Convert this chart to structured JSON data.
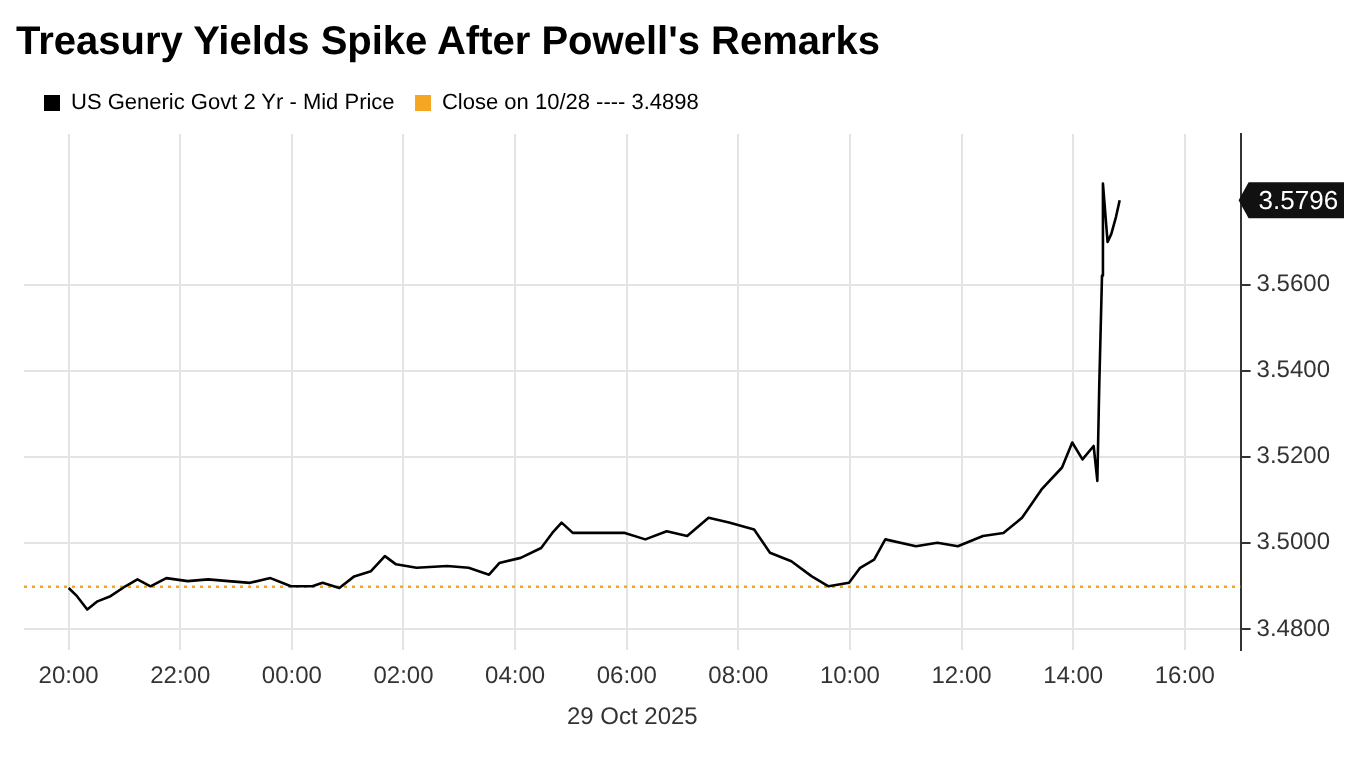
{
  "chart_data": {
    "type": "line",
    "title": "Treasury Yields Spike After Powell's Remarks",
    "xlabel": "29 Oct 2025",
    "x": [
      "2025-10-28T20:00",
      "2025-10-28T20:09",
      "2025-10-28T20:20",
      "2025-10-28T20:31",
      "2025-10-28T20:45",
      "2025-10-28T21:01",
      "2025-10-28T21:14",
      "2025-10-28T21:28",
      "2025-10-28T21:45",
      "2025-10-28T22:08",
      "2025-10-28T22:30",
      "2025-10-28T22:52",
      "2025-10-28T23:15",
      "2025-10-28T23:37",
      "2025-10-28T23:59",
      "2025-10-29T00:22",
      "2025-10-29T00:33",
      "2025-10-29T00:51",
      "2025-10-29T01:07",
      "2025-10-29T01:25",
      "2025-10-29T01:40",
      "2025-10-29T01:52",
      "2025-10-29T02:14",
      "2025-10-29T02:47",
      "2025-10-29T03:10",
      "2025-10-29T03:32",
      "2025-10-29T03:43",
      "2025-10-29T04:06",
      "2025-10-29T04:28",
      "2025-10-29T04:40",
      "2025-10-29T04:50",
      "2025-10-29T05:02",
      "2025-10-29T05:24",
      "2025-10-29T05:58",
      "2025-10-29T06:20",
      "2025-10-29T06:43",
      "2025-10-29T07:05",
      "2025-10-29T07:28",
      "2025-10-29T07:50",
      "2025-10-29T08:17",
      "2025-10-29T08:34",
      "2025-10-29T08:57",
      "2025-10-29T09:19",
      "2025-10-29T09:37",
      "2025-10-29T09:59",
      "2025-10-29T10:11",
      "2025-10-29T10:26",
      "2025-10-29T10:38",
      "2025-10-29T11:11",
      "2025-10-29T11:34",
      "2025-10-29T11:56",
      "2025-10-29T12:23",
      "2025-10-29T12:45",
      "2025-10-29T13:05",
      "2025-10-29T13:26",
      "2025-10-29T13:48",
      "2025-10-29T13:59",
      "2025-10-29T14:10",
      "2025-10-29T14:22",
      "2025-10-29T14:26",
      "2025-10-29T14:28",
      "2025-10-29T14:31",
      "2025-10-29T14:32",
      "2025-10-29T14:37",
      "2025-10-29T14:41",
      "2025-10-29T14:46",
      "2025-10-29T14:50"
    ],
    "series": [
      {
        "name": "US Generic Govt 2 Yr - Mid Price",
        "color": "#000000",
        "values": [
          3.4895,
          3.4876,
          3.4845,
          3.4864,
          3.4876,
          3.4899,
          3.4915,
          3.4899,
          3.4918,
          3.4911,
          3.4915,
          3.4911,
          3.4907,
          3.4918,
          3.4899,
          3.4899,
          3.4907,
          3.4895,
          3.4922,
          3.4934,
          3.4969,
          3.495,
          3.4942,
          3.4946,
          3.4942,
          3.4926,
          3.4953,
          3.4965,
          3.4988,
          3.5023,
          3.5047,
          3.5023,
          3.5023,
          3.5023,
          3.5008,
          3.5027,
          3.5016,
          3.5058,
          3.5047,
          3.5031,
          3.4977,
          3.4957,
          3.4922,
          3.4899,
          3.4907,
          3.4942,
          3.4961,
          3.5008,
          3.4992,
          3.5,
          3.4992,
          3.5016,
          3.5023,
          3.5058,
          3.5124,
          3.5175,
          3.5233,
          3.5194,
          3.5225,
          3.5144,
          3.5361,
          3.5621,
          3.5835,
          3.5699,
          3.5718,
          3.5757,
          3.5796
        ]
      }
    ],
    "ref_lines": [
      {
        "axis": "y",
        "value": 3.4898,
        "label": "Close on 10/28 ---- 3.4898",
        "color": "#f5a623",
        "line_style": "dotted"
      }
    ],
    "annotations": [
      "3.5796"
    ],
    "xlim": [
      "2025-10-28T19:12",
      "2025-10-29T17:00"
    ],
    "xticks": [
      {
        "value": "2025-10-28T20:00",
        "label": "20:00"
      },
      {
        "value": "2025-10-28T22:00",
        "label": "22:00"
      },
      {
        "value": "2025-10-29T00:00",
        "label": "00:00"
      },
      {
        "value": "2025-10-29T02:00",
        "label": "02:00"
      },
      {
        "value": "2025-10-29T04:00",
        "label": "04:00"
      },
      {
        "value": "2025-10-29T06:00",
        "label": "06:00"
      },
      {
        "value": "2025-10-29T08:00",
        "label": "08:00"
      },
      {
        "value": "2025-10-29T10:00",
        "label": "10:00"
      },
      {
        "value": "2025-10-29T12:00",
        "label": "12:00"
      },
      {
        "value": "2025-10-29T14:00",
        "label": "14:00"
      },
      {
        "value": "2025-10-29T16:00",
        "label": "16:00"
      }
    ],
    "ylim": [
      3.475,
      3.595
    ],
    "yticks": [
      {
        "value": 3.48,
        "label": "3.4800"
      },
      {
        "value": 3.5,
        "label": "3.5000"
      },
      {
        "value": 3.52,
        "label": "3.5200"
      },
      {
        "value": 3.54,
        "label": "3.5400"
      },
      {
        "value": 3.56,
        "label": "3.5600"
      }
    ],
    "grid": true,
    "legend": "top left",
    "marker": "none",
    "line_style": "solid"
  }
}
